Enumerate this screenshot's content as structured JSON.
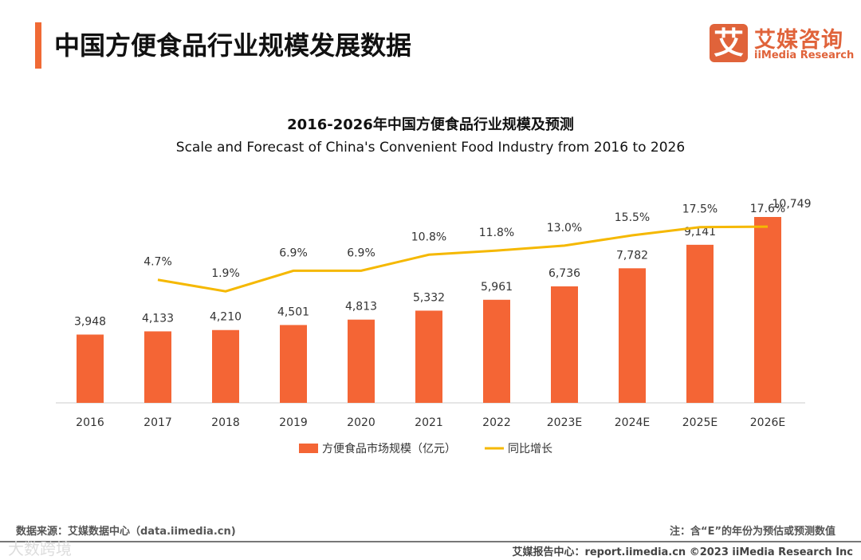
{
  "header": {
    "title": "中国方便食品行业规模发展数据",
    "logo_mark": "艾",
    "logo_cn": "艾媒咨询",
    "logo_en": "iiMedia Research"
  },
  "chart_data": {
    "type": "bar+line",
    "title": "2016-2026年中国方便食品行业规模及预测",
    "subtitle": "Scale and Forecast of China's Convenient Food Industry from 2016 to 2026",
    "categories": [
      "2016",
      "2017",
      "2018",
      "2019",
      "2020",
      "2021",
      "2022",
      "2023E",
      "2024E",
      "2025E",
      "2026E"
    ],
    "series": [
      {
        "name": "方便食品市场规模（亿元）",
        "type": "bar",
        "color": "#f46535",
        "values": [
          3948,
          4133,
          4210,
          4501,
          4813,
          5332,
          5961,
          6736,
          7782,
          9141,
          10749
        ],
        "labels": [
          "3,948",
          "4,133",
          "4,210",
          "4,501",
          "4,813",
          "5,332",
          "5,961",
          "6,736",
          "7,782",
          "9,141",
          "10,749"
        ]
      },
      {
        "name": "同比增长",
        "type": "line",
        "color": "#f5b800",
        "values": [
          null,
          4.7,
          1.9,
          6.9,
          6.9,
          10.8,
          11.8,
          13.0,
          15.5,
          17.5,
          17.6
        ],
        "labels": [
          "",
          "4.7%",
          "1.9%",
          "6.9%",
          "6.9%",
          "10.8%",
          "11.8%",
          "13.0%",
          "15.5%",
          "17.5%",
          "17.6%"
        ]
      }
    ],
    "legend": "bottom"
  },
  "footer": {
    "source": "数据来源：艾媒数据中心（data.iimedia.cn)",
    "note": "注：含“E”的年份为预估或预测数值",
    "copyright": "艾媒报告中心：report.iimedia.cn ©2023 iiMedia Research Inc",
    "watermark": "大数跨境"
  }
}
